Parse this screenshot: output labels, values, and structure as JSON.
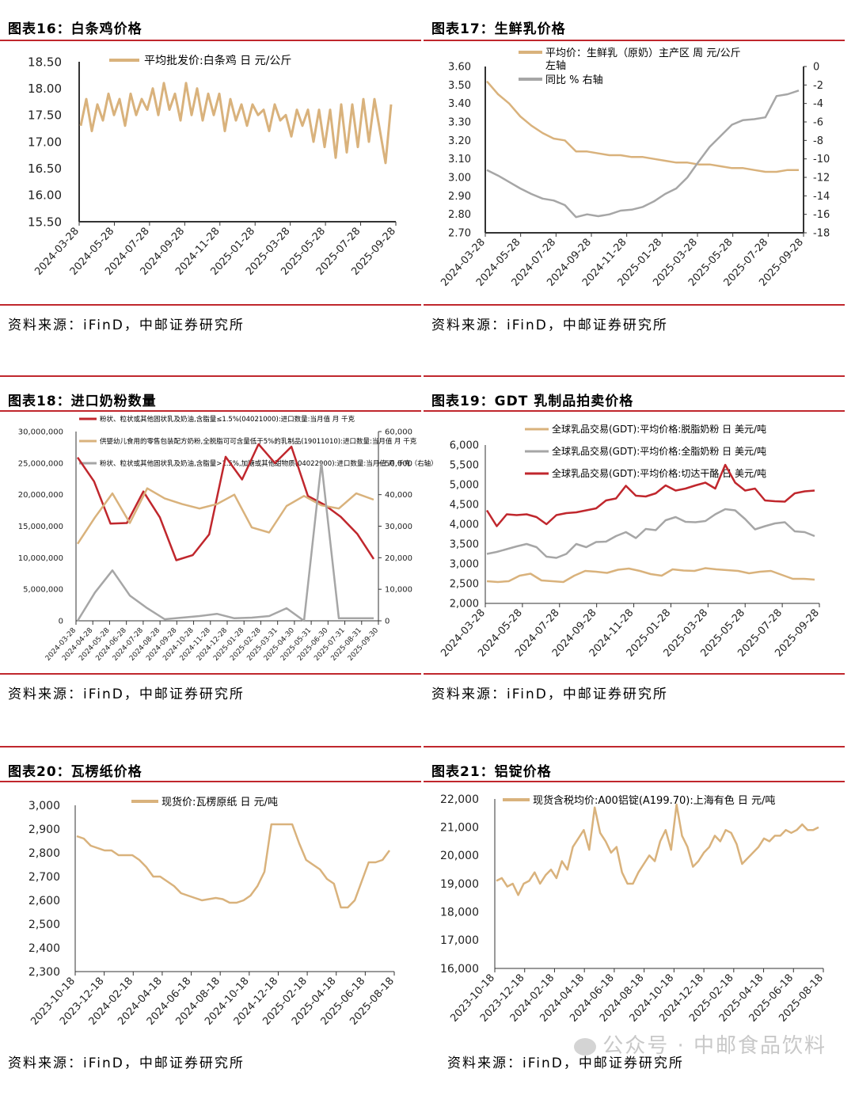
{
  "colors": {
    "tan": "#d9b27c",
    "red": "#c0272d",
    "gray": "#a6a6a6",
    "rule": "#c0272d"
  },
  "panels": [
    {
      "title": "图表16：白条鸡价格",
      "source": "资料来源：iFinD，中邮证券研究所"
    },
    {
      "title": "图表17：生鲜乳价格",
      "source": "资料来源：iFinD，中邮证券研究所"
    },
    {
      "title": "图表18：进口奶粉数量",
      "source": "资料来源：iFinD，中邮证券研究所"
    },
    {
      "title": "图表19：GDT 乳制品拍卖价格",
      "source": "资料来源：iFinD，中邮证券研究所"
    },
    {
      "title": "图表20：瓦楞纸价格",
      "source": "资料来源：iFinD，中邮证券研究所"
    },
    {
      "title": "图表21：铝锭价格",
      "source": "资料来源：iFinD，中邮证券研究所"
    }
  ],
  "watermark": "公众号 · 中邮食品饮料",
  "chart_data": [
    {
      "type": "line",
      "title": "白条鸡价格",
      "yticks": [
        "18.50",
        "18.00",
        "17.50",
        "17.00",
        "16.50",
        "16.00",
        "15.50"
      ],
      "ylim": [
        15.5,
        18.5
      ],
      "xticks": [
        "2024-03-28",
        "2024-05-28",
        "2024-07-28",
        "2024-09-28",
        "2024-11-28",
        "2025-01-28",
        "2025-03-28",
        "2025-05-28",
        "2025-07-28",
        "2025-09-28"
      ],
      "series": [
        {
          "name": "平均批发价:白条鸡 日 元/公斤",
          "color": "#d9b27c",
          "values": [
            17.3,
            17.8,
            17.2,
            17.7,
            17.4,
            17.9,
            17.5,
            17.8,
            17.3,
            17.9,
            17.5,
            17.8,
            17.6,
            18.0,
            17.5,
            18.1,
            17.6,
            17.9,
            17.4,
            18.1,
            17.5,
            18.0,
            17.4,
            17.9,
            17.5,
            17.9,
            17.2,
            17.8,
            17.4,
            17.7,
            17.3,
            17.7,
            17.5,
            17.6,
            17.2,
            17.7,
            17.4,
            17.5,
            17.1,
            17.6,
            17.3,
            17.6,
            17.0,
            17.6,
            16.9,
            17.6,
            16.7,
            17.7,
            16.8,
            17.7,
            16.9,
            17.8,
            17.0,
            17.8,
            17.2,
            16.6,
            17.7
          ]
        }
      ]
    },
    {
      "type": "line",
      "title": "生鲜乳价格",
      "yticks": [
        "3.60",
        "3.50",
        "3.40",
        "3.30",
        "3.20",
        "3.10",
        "3.00",
        "2.90",
        "2.80",
        "2.70"
      ],
      "ylim": [
        2.7,
        3.6
      ],
      "y2ticks": [
        "0",
        "-2",
        "-4",
        "-6",
        "-8",
        "-10",
        "-12",
        "-14",
        "-16",
        "-18"
      ],
      "y2lim": [
        -18,
        0
      ],
      "xticks": [
        "2024-03-28",
        "2024-05-28",
        "2024-07-28",
        "2024-09-28",
        "2024-11-28",
        "2025-01-28",
        "2025-03-28",
        "2025-05-28",
        "2025-07-28",
        "2025-09-28"
      ],
      "series": [
        {
          "name": "平均价：生鲜乳（原奶）主产区 周 元/公斤",
          "axis_note": "左轴",
          "color": "#d9b27c",
          "values": [
            3.52,
            3.45,
            3.4,
            3.33,
            3.28,
            3.24,
            3.21,
            3.2,
            3.14,
            3.14,
            3.13,
            3.12,
            3.12,
            3.11,
            3.11,
            3.1,
            3.09,
            3.08,
            3.08,
            3.07,
            3.07,
            3.06,
            3.05,
            3.05,
            3.04,
            3.03,
            3.03,
            3.04,
            3.04
          ]
        },
        {
          "name": "同比 % 右轴",
          "color": "#a6a6a6",
          "values": [
            -11.2,
            -11.8,
            -12.5,
            -13.2,
            -13.8,
            -14.3,
            -14.5,
            -15.0,
            -16.3,
            -16.0,
            -16.2,
            -16.0,
            -15.6,
            -15.5,
            -15.2,
            -14.6,
            -13.8,
            -13.2,
            -12.0,
            -10.3,
            -8.7,
            -7.5,
            -6.3,
            -5.8,
            -5.7,
            -5.5,
            -3.2,
            -3.0,
            -2.6
          ]
        }
      ]
    },
    {
      "type": "line",
      "title": "进口奶粉数量",
      "yticks": [
        "30,000,000",
        "25,000,000",
        "20,000,000",
        "15,000,000",
        "10,000,000",
        "5,000,000",
        "0"
      ],
      "ylim": [
        0,
        30000000
      ],
      "y2ticks": [
        "60,000",
        "50,000",
        "40,000",
        "30,000",
        "20,000",
        "10,000",
        "0"
      ],
      "y2lim": [
        0,
        60000
      ],
      "xticks": [
        "2024-03-28",
        "2024-04-28",
        "2024-05-28",
        "2024-06-28",
        "2024-07-28",
        "2024-08-28",
        "2024-09-28",
        "2024-10-28",
        "2024-11-28",
        "2024-12-28",
        "2025-01-28",
        "2025-02-28",
        "2025-03-31",
        "2025-04-30",
        "2025-05-31",
        "2025-06-30",
        "2025-07-31",
        "2025-08-31",
        "2025-09-30"
      ],
      "series": [
        {
          "name": "粉状、粒状或其他固状乳及奶油,含脂量≤1.5%(04021000):进口数量:当月值 月 千克",
          "color": "#c0272d",
          "values": [
            25900000,
            22100000,
            15400000,
            15500000,
            20500000,
            16400000,
            9600000,
            10400000,
            13700000,
            26000000,
            22400000,
            28000000,
            25000000,
            27600000,
            19800000,
            18400000,
            16500000,
            13800000,
            9800000
          ]
        },
        {
          "name": "供婴幼儿食用的零售包装配方奶粉,全脱脂可可含量低于5%的乳制品(19011010):进口数量:当月值 月 千克",
          "color": "#d9b27c",
          "values": [
            12200000,
            16400000,
            20200000,
            15500000,
            21000000,
            19400000,
            18500000,
            17800000,
            18500000,
            20000000,
            14800000,
            14000000,
            18200000,
            19800000,
            18300000,
            17800000,
            20200000,
            19200000
          ]
        },
        {
          "name": "粉状、粒状或其他固状乳及奶油,含脂量>1.5%,加糖或其他甜物质(04022900):进口数量:当月值 月 千克（右轴）",
          "color": "#a6a6a6",
          "values": [
            0,
            9000,
            16000,
            8000,
            4000,
            500,
            1000,
            1500,
            2200,
            800,
            1000,
            1500,
            4000,
            0,
            50000,
            800,
            800,
            800
          ]
        }
      ]
    },
    {
      "type": "line",
      "title": "GDT乳制品拍卖价格",
      "yticks": [
        "6,000",
        "5,500",
        "5,000",
        "4,500",
        "4,000",
        "3,500",
        "3,000",
        "2,500",
        "2,000"
      ],
      "ylim": [
        2000,
        6000
      ],
      "xticks": [
        "2024-03-28",
        "2024-05-28",
        "2024-07-28",
        "2024-09-28",
        "2024-11-28",
        "2025-01-28",
        "2025-03-28",
        "2025-05-28",
        "2025-07-28",
        "2025-09-28"
      ],
      "series": [
        {
          "name": "全球乳品交易(GDT):平均价格:脱脂奶粉 日 美元/吨",
          "color": "#d9b27c",
          "values": [
            2560,
            2540,
            2560,
            2700,
            2750,
            2580,
            2560,
            2540,
            2700,
            2820,
            2800,
            2770,
            2850,
            2880,
            2820,
            2740,
            2700,
            2860,
            2830,
            2820,
            2890,
            2860,
            2840,
            2820,
            2760,
            2800,
            2820,
            2720,
            2620,
            2620,
            2600
          ]
        },
        {
          "name": "全球乳品交易(GDT):平均价格:全脂奶粉 日 美元/吨",
          "color": "#a6a6a6",
          "values": [
            3250,
            3300,
            3370,
            3440,
            3500,
            3420,
            3180,
            3150,
            3250,
            3500,
            3420,
            3550,
            3560,
            3700,
            3800,
            3650,
            3880,
            3850,
            4100,
            4180,
            4060,
            4050,
            4080,
            4250,
            4380,
            4350,
            4130,
            3870,
            3950,
            4020,
            4050,
            3820,
            3800,
            3700
          ]
        },
        {
          "name": "全球乳品交易(GDT):平均价格:切达干酪 日 美元/吨",
          "color": "#c0272d",
          "values": [
            4350,
            3950,
            4250,
            4230,
            4250,
            4180,
            4000,
            4230,
            4280,
            4300,
            4350,
            4400,
            4600,
            4650,
            4970,
            4720,
            4700,
            4780,
            4980,
            4850,
            4900,
            4980,
            5050,
            4900,
            5500,
            5050,
            4850,
            4900,
            4600,
            4580,
            4570,
            4780,
            4830,
            4850
          ]
        }
      ]
    },
    {
      "type": "line",
      "title": "瓦楞纸价格",
      "yticks": [
        "3,000",
        "2,900",
        "2,800",
        "2,700",
        "2,600",
        "2,500",
        "2,400",
        "2,300"
      ],
      "ylim": [
        2300,
        3000
      ],
      "xticks": [
        "2023-10-18",
        "2023-12-18",
        "2024-02-18",
        "2024-04-18",
        "2024-06-18",
        "2024-08-18",
        "2024-10-18",
        "2024-12-18",
        "2025-02-18",
        "2025-04-18",
        "2025-06-18",
        "2025-08-18"
      ],
      "series": [
        {
          "name": "现货价:瓦楞原纸 日 元/吨",
          "color": "#d9b27c",
          "values": [
            2870,
            2860,
            2830,
            2820,
            2810,
            2810,
            2790,
            2790,
            2790,
            2770,
            2740,
            2700,
            2700,
            2680,
            2660,
            2630,
            2620,
            2610,
            2600,
            2605,
            2610,
            2605,
            2590,
            2590,
            2600,
            2620,
            2660,
            2720,
            2920,
            2920,
            2920,
            2920,
            2840,
            2770,
            2750,
            2730,
            2690,
            2670,
            2570,
            2570,
            2600,
            2680,
            2760,
            2760,
            2770,
            2810
          ]
        }
      ]
    },
    {
      "type": "line",
      "title": "铝锭价格",
      "yticks": [
        "22,000",
        "21,000",
        "20,000",
        "19,000",
        "18,000",
        "17,000",
        "16,000"
      ],
      "ylim": [
        16000,
        22000
      ],
      "xticks": [
        "2023-10-18",
        "2023-12-18",
        "2024-02-18",
        "2024-04-18",
        "2024-06-18",
        "2024-08-18",
        "2024-10-18",
        "2024-12-18",
        "2025-02-18",
        "2025-04-18",
        "2025-06-18",
        "2025-08-18"
      ],
      "series": [
        {
          "name": "现货含税均价:A00铝锭(A199.70):上海有色 日 元/吨",
          "color": "#d9b27c",
          "values": [
            19100,
            19200,
            18900,
            19000,
            18600,
            19000,
            19100,
            19400,
            19000,
            19300,
            19500,
            19200,
            19800,
            19500,
            20300,
            20600,
            20900,
            20200,
            21700,
            20800,
            20500,
            20100,
            20300,
            19400,
            19000,
            19000,
            19400,
            19700,
            20000,
            19800,
            20500,
            20900,
            20200,
            21800,
            20700,
            20300,
            19600,
            19800,
            20100,
            20300,
            20700,
            20500,
            20900,
            20800,
            20400,
            19700,
            19900,
            20100,
            20300,
            20600,
            20500,
            20700,
            20700,
            20900,
            20800,
            20900,
            21100,
            20900,
            20900,
            21000
          ]
        }
      ]
    }
  ]
}
